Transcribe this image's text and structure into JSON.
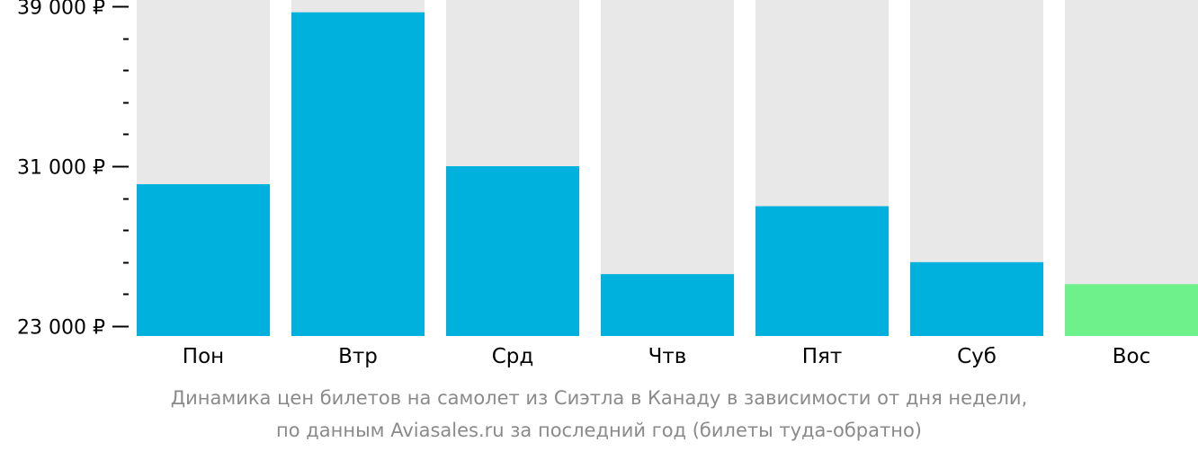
{
  "chart_data": {
    "type": "bar",
    "categories": [
      "Пон",
      "Втр",
      "Срд",
      "Чтв",
      "Пят",
      "Суб",
      "Вос"
    ],
    "values": [
      30100,
      38700,
      31000,
      25600,
      29000,
      26200,
      25100
    ],
    "highlight_index": 6,
    "ylim": [
      23000,
      39000
    ],
    "y_ticks": [
      {
        "value": 39000,
        "label": "39 000 ₽"
      },
      {
        "value": 31000,
        "label": "31 000 ₽"
      },
      {
        "value": 23000,
        "label": "23 000 ₽"
      }
    ],
    "y_minor_step": 1600,
    "xlabel": "",
    "ylabel": "",
    "grid": false,
    "colors": {
      "bar": "#00b0dd",
      "highlight": "#6ef08a",
      "background_column": "#e8e8e8",
      "axis": "#000000",
      "caption": "#8a8a8a"
    }
  },
  "caption": {
    "line1": "Динамика цен билетов на самолет из Сиэтла в Канаду в зависимости от дня недели,",
    "line2": "по данным Aviasales.ru за последний год (билеты туда-обратно)"
  }
}
